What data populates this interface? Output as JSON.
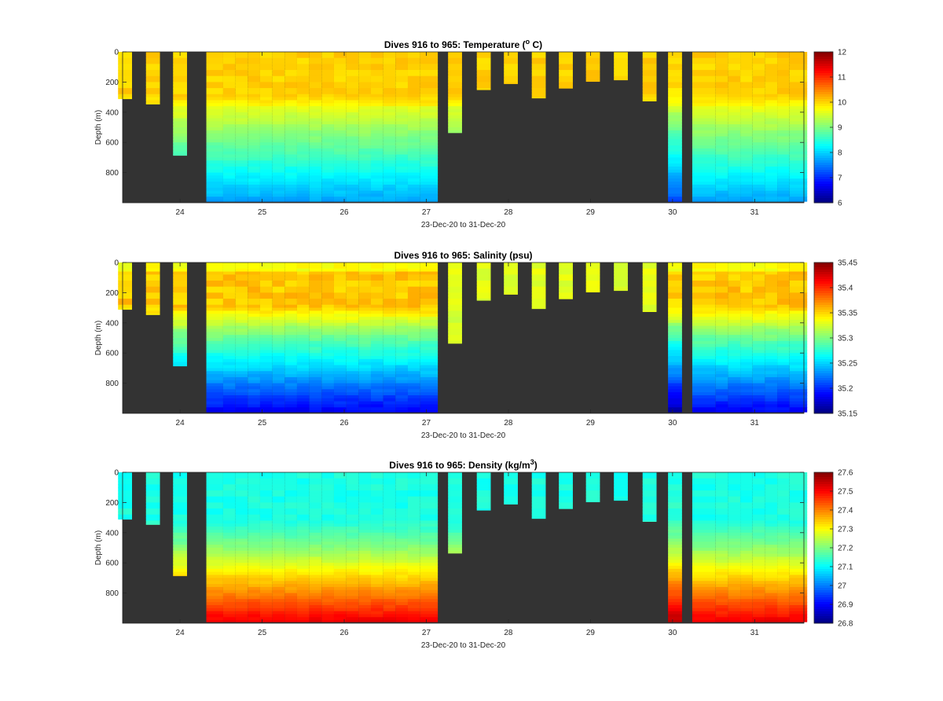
{
  "chart_data": [
    {
      "type": "heatmap",
      "title_main": "Dives 916 to 965: Temperature (",
      "title_sup": "o",
      "title_end": " C)",
      "xlabel": "23-Dec-20 to 31-Dec-20",
      "ylabel": "Depth (m)",
      "x_ticks": [
        "24",
        "25",
        "26",
        "27",
        "28",
        "29",
        "30",
        "31"
      ],
      "y_ticks": [
        "0",
        "200",
        "400",
        "600",
        "800"
      ],
      "ylim": [
        0,
        1000
      ],
      "colorbar_ticks": [
        "12",
        "11",
        "10",
        "9",
        "8",
        "7",
        "6"
      ],
      "colorbar_range": [
        6,
        12
      ],
      "variable": "temperature"
    },
    {
      "type": "heatmap",
      "title_main": "Dives 916 to 965: Salinity (psu)",
      "title_sup": "",
      "title_end": "",
      "xlabel": "23-Dec-20 to 31-Dec-20",
      "ylabel": "Depth (m)",
      "x_ticks": [
        "24",
        "25",
        "26",
        "27",
        "28",
        "29",
        "30",
        "31"
      ],
      "y_ticks": [
        "0",
        "200",
        "400",
        "600",
        "800"
      ],
      "ylim": [
        0,
        1000
      ],
      "colorbar_ticks": [
        "35.45",
        "35.4",
        "35.35",
        "35.3",
        "35.25",
        "35.2",
        "35.15"
      ],
      "colorbar_range": [
        35.15,
        35.45
      ],
      "variable": "salinity"
    },
    {
      "type": "heatmap",
      "title_main": "Dives 916 to 965: Density (kg/m",
      "title_sup": "3",
      "title_end": ")",
      "xlabel": "23-Dec-20 to 31-Dec-20",
      "ylabel": "Depth (m)",
      "x_ticks": [
        "24",
        "25",
        "26",
        "27",
        "28",
        "29",
        "30",
        "31"
      ],
      "y_ticks": [
        "0",
        "200",
        "400",
        "600",
        "800"
      ],
      "ylim": [
        0,
        1000
      ],
      "colorbar_ticks": [
        "27.6",
        "27.5",
        "27.4",
        "27.3",
        "27.2",
        "27.1",
        "27",
        "26.9",
        "26.8"
      ],
      "colorbar_range": [
        26.8,
        27.6
      ],
      "variable": "density"
    }
  ],
  "dive_columns": [
    {
      "day": 23.33,
      "max_depth": 310
    },
    {
      "day": 23.67,
      "max_depth": 345
    },
    {
      "day": 24.0,
      "max_depth": 685
    },
    {
      "day": 24.45,
      "max_depth": 990
    },
    {
      "day": 24.6,
      "max_depth": 990
    },
    {
      "day": 24.75,
      "max_depth": 990
    },
    {
      "day": 24.9,
      "max_depth": 990
    },
    {
      "day": 25.05,
      "max_depth": 990
    },
    {
      "day": 25.2,
      "max_depth": 990
    },
    {
      "day": 25.35,
      "max_depth": 990
    },
    {
      "day": 25.5,
      "max_depth": 990
    },
    {
      "day": 25.65,
      "max_depth": 990
    },
    {
      "day": 25.8,
      "max_depth": 990
    },
    {
      "day": 25.95,
      "max_depth": 990
    },
    {
      "day": 26.1,
      "max_depth": 990
    },
    {
      "day": 26.25,
      "max_depth": 990
    },
    {
      "day": 26.4,
      "max_depth": 990
    },
    {
      "day": 26.55,
      "max_depth": 990
    },
    {
      "day": 26.7,
      "max_depth": 990
    },
    {
      "day": 26.85,
      "max_depth": 990
    },
    {
      "day": 27.0,
      "max_depth": 990
    },
    {
      "day": 27.35,
      "max_depth": 535
    },
    {
      "day": 27.7,
      "max_depth": 250
    },
    {
      "day": 28.03,
      "max_depth": 210
    },
    {
      "day": 28.37,
      "max_depth": 305
    },
    {
      "day": 28.7,
      "max_depth": 240
    },
    {
      "day": 29.03,
      "max_depth": 195
    },
    {
      "day": 29.37,
      "max_depth": 185
    },
    {
      "day": 29.72,
      "max_depth": 325
    },
    {
      "day": 30.03,
      "max_depth": 990
    },
    {
      "day": 30.45,
      "max_depth": 990
    },
    {
      "day": 30.6,
      "max_depth": 990
    },
    {
      "day": 30.75,
      "max_depth": 990
    },
    {
      "day": 30.9,
      "max_depth": 990
    },
    {
      "day": 31.05,
      "max_depth": 990
    },
    {
      "day": 31.2,
      "max_depth": 990
    },
    {
      "day": 31.35,
      "max_depth": 990
    },
    {
      "day": 31.5,
      "max_depth": 990
    }
  ],
  "x_range": [
    23.3,
    31.6
  ],
  "no_data_color": "#333333"
}
